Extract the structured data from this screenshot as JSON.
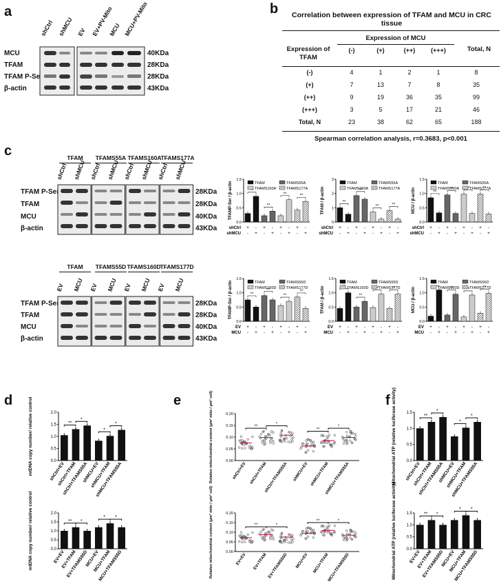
{
  "panel_labels": {
    "a": "a",
    "b": "b",
    "c": "c",
    "d": "d",
    "e": "e",
    "f": "f"
  },
  "a": {
    "lanes_left": [
      "shCtrl",
      "shMCU"
    ],
    "lanes_right": [
      "EV",
      "EV+PV-Mito",
      "MCU",
      "MCU+PV-Mito"
    ],
    "rows": [
      "MCU",
      "TFAM",
      "TFAM P-Ser",
      "β-actin"
    ],
    "kda": [
      "40KDa",
      "28KDa",
      "28KDa",
      "43KDa"
    ]
  },
  "b": {
    "title": "Correlation between expression of TFAM and MCU  in CRC tissue",
    "col_group": "Expression of MCU",
    "row_header": "Expression of TFAM",
    "total_header": "Total, N",
    "cols": [
      "(-)",
      "(+)",
      "(++)",
      "(+++)"
    ],
    "rows": [
      {
        "label": "(-)",
        "values": [
          "4",
          "1",
          "2",
          "1",
          "8"
        ]
      },
      {
        "label": "(+)",
        "values": [
          "7",
          "13",
          "7",
          "8",
          "35"
        ]
      },
      {
        "label": "(++)",
        "values": [
          "9",
          "19",
          "36",
          "35",
          "99"
        ]
      },
      {
        "label": "(+++)",
        "values": [
          "3",
          "5",
          "17",
          "21",
          "46"
        ]
      },
      {
        "label": "Total, N",
        "values": [
          "23",
          "38",
          "62",
          "65",
          "188"
        ]
      }
    ],
    "footer": "Spearman correlation analysis, r=0.3683, p<0.001"
  },
  "c": {
    "top": {
      "groups": [
        "TFAM",
        "TFAMS55A",
        "TFAMS160A",
        "TFAMS177A"
      ],
      "lanes": [
        "shCtrl",
        "shMCU",
        "shCtrl",
        "shMCU",
        "shCtrl",
        "shMCU",
        "shCtrl",
        "shMCU"
      ],
      "rows": [
        "TFAM P-Ser",
        "TFAM",
        "MCU",
        "β-actin"
      ],
      "kda": [
        "28KDa",
        "28KDa",
        "40KDa",
        "43KDa"
      ],
      "cond_labels": [
        "shCtrl",
        "shMCU"
      ]
    },
    "bottom": {
      "groups": [
        "TFAM",
        "TFAMS55D",
        "TFAMS160D",
        "TFAMS177D"
      ],
      "lanes": [
        "EV",
        "MCU",
        "EV",
        "MCU",
        "EV",
        "MCU",
        "EV",
        "MCU"
      ],
      "rows": [
        "TFAM P-Ser",
        "TFAM",
        "MCU",
        "β-actin"
      ],
      "kda": [
        "28KDa",
        "28KDa",
        "40KDa",
        "43KDa"
      ],
      "cond_labels": [
        "EV",
        "MCU"
      ]
    },
    "signs_a": [
      "+",
      "-",
      "+",
      "-",
      "+",
      "-",
      "+",
      "-"
    ],
    "signs_b": [
      "-",
      "+",
      "-",
      "+",
      "-",
      "+",
      "-",
      "+"
    ],
    "legend_top": [
      "TFAM",
      "TFAMS55A",
      "TFAMS160A",
      "TFAMS177A"
    ],
    "legend_bottom": [
      "TFAM",
      "TFAMS55D",
      "TFAMS160D",
      "TFAMS177D"
    ],
    "sig": [
      "**",
      "*"
    ]
  },
  "d": {
    "ylabel": "mtDNA copy number/ relative control",
    "top_categories": [
      "shCtrl+EV",
      "shCtrl+TFAM",
      "shCtrl+TFAMS55A",
      "shMCU+EV",
      "shMCU+TFAM",
      "shMCU+TFAMS55A"
    ],
    "bottom_categories": [
      "EV+EV",
      "EV+TFAM",
      "EV+TFAMS55D",
      "MCU+EV",
      "MCU+TFAM",
      "MCU+TFAMS55D"
    ]
  },
  "e": {
    "ylabel": "Relative mitochondrial content (μm² mito / μm² cell)",
    "top_categories": [
      "shCtrl+EV",
      "shCtrl+TFAM",
      "shCtrl+TFAMS55A",
      "shMCU+EV",
      "shMCU+TFAM",
      "shMCU+TFAMS55A"
    ],
    "bottom_categories": [
      "EV+EV",
      "EV+TFAM",
      "EV+TFAMS55D",
      "MCU+EV",
      "MCU+TFAM",
      "MCU+TFAMS55D"
    ]
  },
  "f": {
    "ylabel": "Mitochondrial ATP (relative luciferase activity)",
    "top_categories": [
      "shCtrl+EV",
      "shCtrl+TFAM",
      "shCtrl+TFAMS55A",
      "shMCU+EV",
      "shMCU+TFAM",
      "shMCU+TFAMS55A"
    ],
    "bottom_categories": [
      "EV+EV",
      "EV+TFAM",
      "EV+TFAMS55D",
      "MCU+EV",
      "MCU+TFAM",
      "MCU+TFAMS55D"
    ]
  },
  "chart_data": [
    {
      "id": "c-top-1",
      "type": "bar",
      "ylabel": "TFAMP-Ser / β-actin",
      "ylim": [
        0,
        1.5
      ],
      "ticks": [
        "0.0",
        "0.5",
        "1.0",
        "1.5"
      ],
      "values": [
        0.3,
        0.9,
        0.22,
        0.38,
        0.22,
        0.78,
        0.42,
        0.72
      ],
      "colors": [
        "#111111",
        "#111111",
        "#666666",
        "#666666",
        "#cccccc",
        "#cccccc",
        "hatch",
        "hatch"
      ]
    },
    {
      "id": "c-top-2",
      "type": "bar",
      "ylabel": "TFAM / β-actin",
      "ylim": [
        0,
        3
      ],
      "ticks": [
        "0",
        "1",
        "2",
        "3"
      ],
      "values": [
        1.0,
        0.55,
        1.85,
        1.6,
        0.7,
        0.2,
        0.8,
        0.2
      ],
      "colors": [
        "#111111",
        "#111111",
        "#666666",
        "#666666",
        "#cccccc",
        "#cccccc",
        "hatch",
        "hatch"
      ]
    },
    {
      "id": "c-top-3",
      "type": "bar",
      "ylabel": "MCU / β-actin",
      "ylim": [
        0,
        1.5
      ],
      "ticks": [
        "0.0",
        "0.5",
        "1.0",
        "1.5"
      ],
      "values": [
        0.85,
        0.32,
        0.95,
        0.3,
        0.98,
        0.3,
        0.98,
        0.28
      ],
      "colors": [
        "#111111",
        "#111111",
        "#666666",
        "#666666",
        "#cccccc",
        "#cccccc",
        "hatch",
        "hatch"
      ]
    },
    {
      "id": "c-bot-1",
      "type": "bar",
      "ylabel": "TFAMP-Ser / β-actin",
      "ylim": [
        0,
        1.5
      ],
      "ticks": [
        "0.0",
        "0.5",
        "1.0",
        "1.5"
      ],
      "values": [
        0.75,
        0.5,
        0.9,
        0.75,
        0.55,
        0.7,
        0.85,
        0.45
      ],
      "colors": [
        "#111111",
        "#111111",
        "#666666",
        "#666666",
        "#cccccc",
        "#cccccc",
        "hatch",
        "hatch"
      ]
    },
    {
      "id": "c-bot-2",
      "type": "bar",
      "ylabel": "TFAM / β-actin",
      "ylim": [
        0,
        1.5
      ],
      "ticks": [
        "0.0",
        "0.5",
        "1.0",
        "1.5"
      ],
      "values": [
        0.45,
        1.0,
        0.5,
        0.7,
        0.48,
        0.95,
        0.45,
        0.95
      ],
      "colors": [
        "#111111",
        "#111111",
        "#666666",
        "#666666",
        "#cccccc",
        "#cccccc",
        "hatch",
        "hatch"
      ]
    },
    {
      "id": "c-bot-3",
      "type": "bar",
      "ylabel": "MCU / β-actin",
      "ylim": [
        0,
        1.5
      ],
      "ticks": [
        "0.0",
        "0.5",
        "1.0",
        "1.5"
      ],
      "values": [
        0.18,
        1.1,
        0.22,
        0.95,
        0.15,
        0.92,
        0.28,
        0.98
      ],
      "colors": [
        "#111111",
        "#111111",
        "#666666",
        "#666666",
        "#cccccc",
        "#cccccc",
        "hatch",
        "hatch"
      ]
    },
    {
      "id": "d-top",
      "type": "bar",
      "ylim": [
        0,
        2.0
      ],
      "ticks": [
        "0.0",
        "0.5",
        "1.0",
        "1.5",
        "2.0"
      ],
      "values": [
        1.05,
        1.3,
        1.45,
        0.82,
        1.02,
        1.27
      ]
    },
    {
      "id": "d-bot",
      "type": "bar",
      "ylim": [
        0,
        2.0
      ],
      "ticks": [
        "0.0",
        "0.5",
        "1.0",
        "1.5",
        "2.0"
      ],
      "values": [
        1.0,
        1.2,
        1.0,
        1.2,
        1.42,
        1.2
      ]
    },
    {
      "id": "e-top",
      "type": "scatter",
      "ylim": [
        0,
        0.2
      ],
      "ticks": [
        "0.00",
        "0.05",
        "0.10",
        "0.15",
        "0.20"
      ],
      "means": [
        0.075,
        0.098,
        0.108,
        0.062,
        0.085,
        0.098
      ]
    },
    {
      "id": "e-bot",
      "type": "scatter",
      "ylim": [
        0,
        0.2
      ],
      "ticks": [
        "0.00",
        "0.05",
        "0.10",
        "0.15",
        "0.20"
      ],
      "means": [
        0.072,
        0.088,
        0.075,
        0.095,
        0.11,
        0.085
      ]
    },
    {
      "id": "f-top",
      "type": "bar",
      "ylim": [
        0,
        1.5
      ],
      "ticks": [
        "0.0",
        "0.5",
        "1.0",
        "1.5"
      ],
      "values": [
        1.0,
        1.2,
        1.35,
        0.75,
        1.02,
        1.2
      ]
    },
    {
      "id": "f-bot",
      "type": "bar",
      "ylim": [
        0,
        1.5
      ],
      "ticks": [
        "0.0",
        "0.5",
        "1.0",
        "1.5"
      ],
      "values": [
        1.0,
        1.2,
        1.0,
        1.2,
        1.4,
        1.2
      ]
    }
  ]
}
